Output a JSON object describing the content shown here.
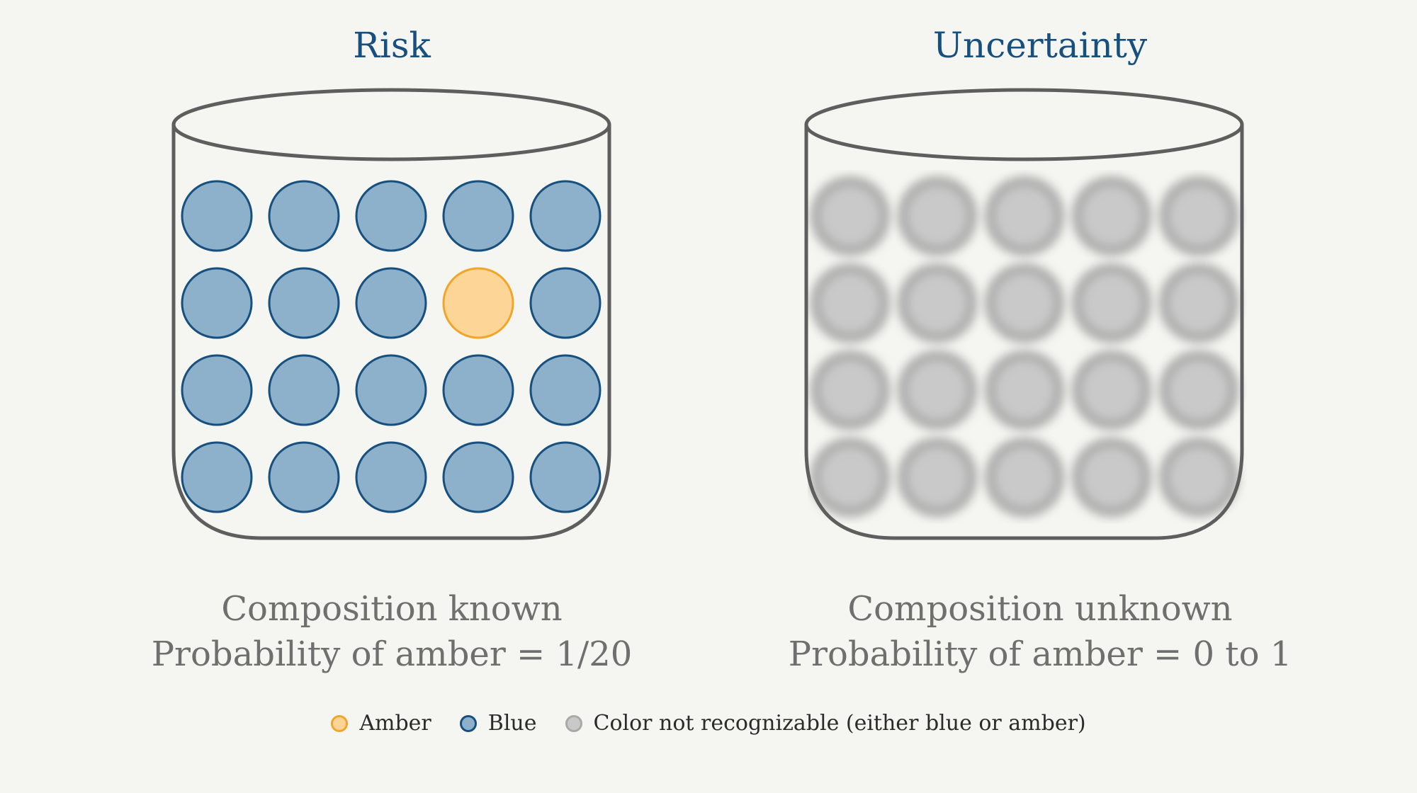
{
  "panels": {
    "risk": {
      "title": "Risk",
      "caption_line1": "Composition known",
      "caption_line2": "Probability of amber = 1/20",
      "balls": [
        [
          "blue",
          "blue",
          "blue",
          "blue",
          "blue"
        ],
        [
          "blue",
          "blue",
          "blue",
          "amber",
          "blue"
        ],
        [
          "blue",
          "blue",
          "blue",
          "blue",
          "blue"
        ],
        [
          "blue",
          "blue",
          "blue",
          "blue",
          "blue"
        ]
      ]
    },
    "uncertainty": {
      "title": "Uncertainty",
      "caption_line1": "Composition unknown",
      "caption_line2": "Probability of amber = 0 to 1",
      "balls": [
        [
          "unknown",
          "unknown",
          "unknown",
          "unknown",
          "unknown"
        ],
        [
          "unknown",
          "unknown",
          "unknown",
          "unknown",
          "unknown"
        ],
        [
          "unknown",
          "unknown",
          "unknown",
          "unknown",
          "unknown"
        ],
        [
          "unknown",
          "unknown",
          "unknown",
          "unknown",
          "unknown"
        ]
      ]
    }
  },
  "legend": {
    "amber": "Amber",
    "blue": "Blue",
    "unknown": "Color not recognizable (either blue or amber)"
  },
  "colors": {
    "blue_fill": "#8db1ca",
    "blue_stroke": "#174f7e",
    "amber_fill": "#fdd597",
    "amber_stroke": "#f2a52b",
    "unknown_fill": "#c9c9c9",
    "unknown_stroke": "#a9a9a9",
    "jar_stroke": "#5e5e5e",
    "title": "#174f7e",
    "caption": "#6f6f6f"
  }
}
